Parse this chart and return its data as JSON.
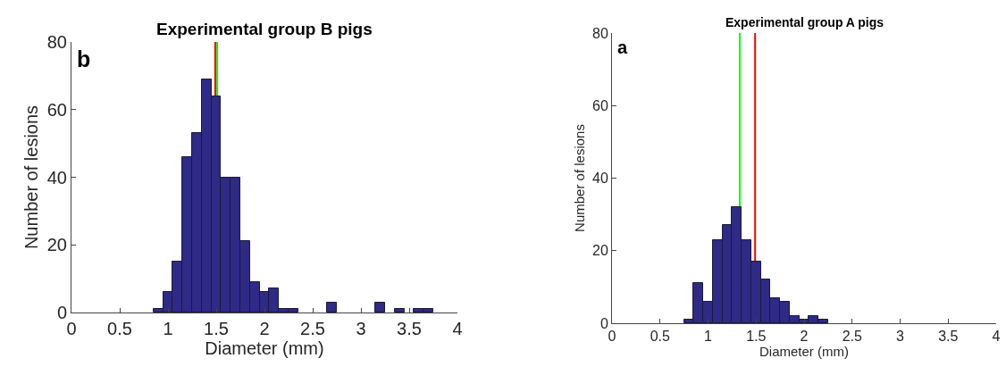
{
  "chart_data": [
    {
      "type": "histogram",
      "title": "Experimental group B pigs",
      "xlabel": "Diameter (mm)",
      "ylabel": "Number of lesions",
      "annotations": [
        "b"
      ],
      "bins": [
        0.85,
        0.95,
        1.05,
        1.15,
        1.25,
        1.35,
        1.45,
        1.55,
        1.65,
        1.75,
        1.85,
        1.95,
        2.05,
        2.15,
        2.25,
        2.35,
        2.45,
        2.55,
        2.65,
        2.75,
        2.85,
        2.95,
        3.05,
        3.15,
        3.25,
        3.35,
        3.45,
        3.55,
        3.65,
        3.75
      ],
      "values": [
        1,
        6,
        15,
        46,
        53,
        69,
        64,
        40,
        40,
        21,
        9,
        6,
        7,
        1,
        1,
        0,
        0,
        0,
        3,
        0,
        0,
        0,
        0,
        3,
        0,
        1,
        0,
        1,
        1
      ],
      "color": "#2e2a86",
      "xlim": [
        0,
        4
      ],
      "xticks": [
        0,
        0.5,
        1,
        1.5,
        2,
        2.5,
        3,
        3.5,
        4
      ],
      "ylim": [
        0,
        80
      ],
      "yticks": [
        0,
        20,
        40,
        60,
        80
      ],
      "grid": false,
      "ref_lines": [
        {
          "axis": "x",
          "value": 1.49,
          "color": "#ff0000"
        },
        {
          "axis": "x",
          "value": 1.51,
          "color": "#00ff00"
        }
      ]
    },
    {
      "type": "histogram",
      "title": "Experimental group A pigs",
      "xlabel": "Diameter (mm)",
      "ylabel": "Number of lesions",
      "annotations": [
        "a"
      ],
      "bins": [
        0.75,
        0.85,
        0.95,
        1.05,
        1.15,
        1.25,
        1.35,
        1.45,
        1.55,
        1.65,
        1.75,
        1.85,
        1.95,
        2.05,
        2.15,
        2.25
      ],
      "values": [
        1,
        11,
        6,
        23,
        27,
        32,
        23,
        17,
        12,
        7,
        6,
        2,
        1,
        2,
        1
      ],
      "color": "#2e2a86",
      "xlim": [
        0,
        4
      ],
      "xticks": [
        0,
        0.5,
        1,
        1.5,
        2,
        2.5,
        3,
        3.5,
        4
      ],
      "ylim": [
        0,
        80
      ],
      "yticks": [
        0,
        20,
        40,
        60,
        80
      ],
      "grid": false,
      "ref_lines": [
        {
          "axis": "x",
          "value": 1.33,
          "color": "#00ff00"
        },
        {
          "axis": "x",
          "value": 1.49,
          "color": "#ff0000"
        }
      ]
    }
  ]
}
